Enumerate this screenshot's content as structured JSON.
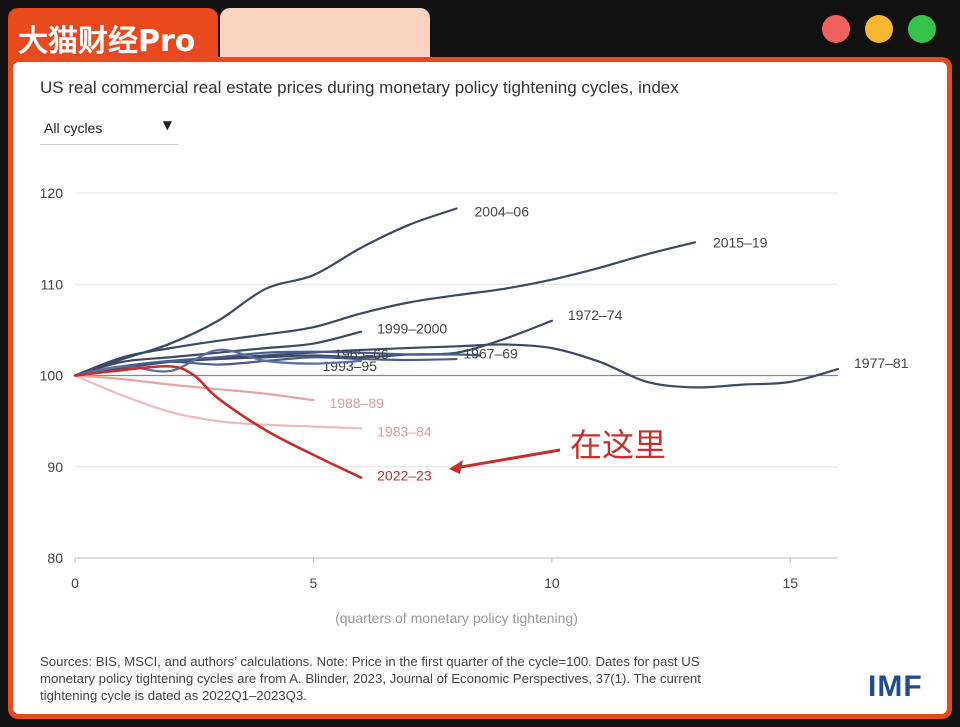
{
  "header": {
    "brand": "大猫财经Pro",
    "window_dots": [
      {
        "name": "close",
        "color": "#f0605d"
      },
      {
        "name": "minimize",
        "color": "#f7b733"
      },
      {
        "name": "maximize",
        "color": "#37c24b"
      }
    ]
  },
  "dropdown": {
    "selected": "All cycles"
  },
  "chart_data": {
    "type": "line",
    "title": "US real commercial real estate prices during monetary policy tightening cycles, index",
    "xlabel": "(quarters of monetary policy tightening)",
    "ylabel": "",
    "xlim": [
      0,
      16
    ],
    "ylim": [
      80,
      120
    ],
    "xticks": [
      "0",
      "5",
      "10",
      "15"
    ],
    "yticks": [
      "80",
      "90",
      "100",
      "110",
      "120"
    ],
    "baseline": 100,
    "series": [
      {
        "name": "2004-06",
        "label": "2004–06",
        "color": "#3b4a66",
        "x": [
          0,
          1,
          2,
          3,
          4,
          5,
          6,
          7,
          8
        ],
        "y": [
          100,
          101.8,
          103.5,
          106,
          109.5,
          111,
          114,
          116.5,
          118.3
        ]
      },
      {
        "name": "2015-19",
        "label": "2015–19",
        "color": "#3b4a66",
        "x": [
          0,
          1,
          2,
          3,
          4,
          5,
          6,
          7,
          8,
          9,
          10,
          11,
          12,
          13
        ],
        "y": [
          100,
          102,
          103,
          103.8,
          104.5,
          105.3,
          106.8,
          108,
          108.8,
          109.5,
          110.5,
          111.8,
          113.3,
          114.6
        ]
      },
      {
        "name": "1977-81",
        "label": "1977–81",
        "color": "#3b4a66",
        "x": [
          0,
          2,
          4,
          6,
          8,
          9,
          10,
          11,
          12,
          13,
          14,
          15,
          16
        ],
        "y": [
          100,
          101.5,
          102.2,
          102.8,
          103.2,
          103.4,
          103,
          101.5,
          99.3,
          98.7,
          99,
          99.3,
          100.7
        ]
      },
      {
        "name": "1972-74",
        "label": "1972–74",
        "color": "#3b4a66",
        "x": [
          0,
          1,
          2,
          3,
          4,
          5,
          6,
          7,
          8,
          9,
          10
        ],
        "y": [
          100,
          101,
          101.5,
          101.8,
          102,
          102.2,
          102,
          102.3,
          102.5,
          104,
          106
        ]
      },
      {
        "name": "1999-2000",
        "label": "1999–2000",
        "color": "#3b4a66",
        "x": [
          0,
          1,
          2,
          3,
          4,
          5,
          6
        ],
        "y": [
          100,
          101.5,
          102,
          102.5,
          103,
          103.5,
          104.8
        ]
      },
      {
        "name": "1967-69",
        "label": "1967–69",
        "color": "#4a5d8c",
        "x": [
          0,
          1,
          2,
          3,
          4,
          5,
          6,
          7,
          8,
          8.5
        ],
        "y": [
          100,
          101,
          101.6,
          102,
          102.5,
          102.6,
          102.5,
          102.3,
          102.3,
          102.2
        ]
      },
      {
        "name": "1993-95",
        "label": "1993–95",
        "color": "#4a5d8c",
        "x": [
          0,
          1,
          2,
          3,
          4,
          5,
          6,
          7,
          8
        ],
        "y": [
          100,
          101,
          101.5,
          101.2,
          101.6,
          102,
          101.8,
          101.7,
          101.8
        ]
      },
      {
        "name": "1965-66",
        "label": "1965–66",
        "color": "#5b6fa6",
        "x": [
          0,
          1,
          2,
          3,
          4,
          5,
          6
        ],
        "y": [
          100,
          101,
          100.5,
          102.8,
          101.6,
          101.3,
          101.6
        ]
      },
      {
        "name": "1988-89",
        "label": "1988–89",
        "color": "#e8a4a4",
        "x": [
          0,
          1,
          2,
          3,
          4,
          5
        ],
        "y": [
          100,
          99.6,
          99,
          98.5,
          98,
          97.3
        ]
      },
      {
        "name": "1983-84",
        "label": "1983–84",
        "color": "#eebbbb",
        "x": [
          0,
          1,
          2,
          3,
          4,
          5,
          6
        ],
        "y": [
          100,
          97.8,
          96,
          95,
          94.6,
          94.4,
          94.2
        ]
      },
      {
        "name": "2022-23",
        "label": "2022–23",
        "color": "#c9302c",
        "x": [
          0,
          1,
          2,
          2.5,
          3,
          4,
          5,
          6
        ],
        "y": [
          100,
          100.6,
          101,
          100,
          97.5,
          94,
          91.3,
          88.8
        ]
      }
    ],
    "annotation": {
      "text": "在这里",
      "target": "2022-23"
    }
  },
  "footer": {
    "sources_lines": [
      "Sources: BIS, MSCI, and authors’ calculations. Note: Price in the first quarter of the cycle=100. Dates for past US",
      "monetary policy tightening cycles are from A. Blinder, 2023, Journal of Economic Perspectives, 37(1). The current",
      "tightening cycle is dated as 2022Q1–2023Q3."
    ],
    "logo": "IMF"
  }
}
